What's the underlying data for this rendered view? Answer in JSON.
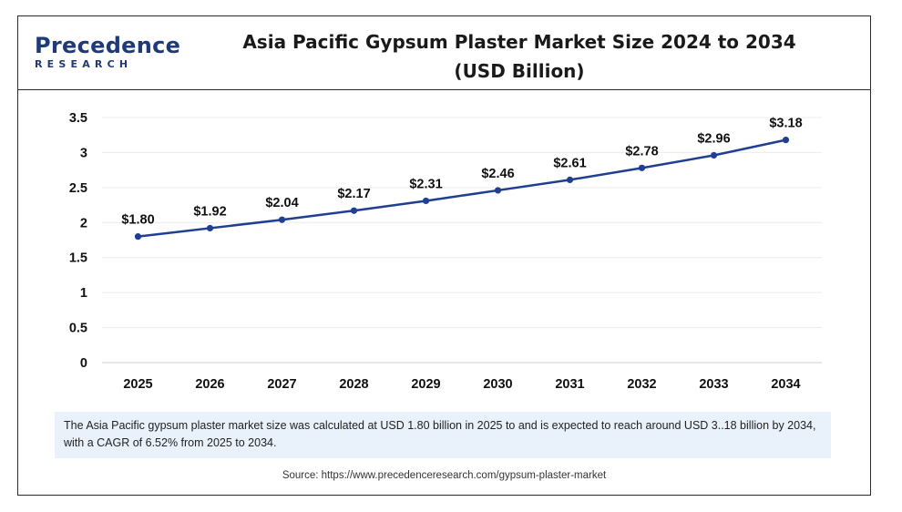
{
  "brand": {
    "logo_top": "Precedence",
    "logo_bottom": "RESEARCH",
    "color": "#1e3a78"
  },
  "header": {
    "title_line1": "Asia Pacific Gypsum Plaster Market Size 2024 to 2034",
    "title_line2": "(USD Billion)"
  },
  "chart_data": {
    "type": "line",
    "title": "Asia Pacific Gypsum Plaster Market Size 2024 to 2034 (USD Billion)",
    "xlabel": "",
    "ylabel": "",
    "x": [
      "2025",
      "2026",
      "2027",
      "2028",
      "2029",
      "2030",
      "2031",
      "2032",
      "2033",
      "2034"
    ],
    "series": [
      {
        "values": [
          1.8,
          1.92,
          2.04,
          2.17,
          2.31,
          2.46,
          2.61,
          2.78,
          2.96,
          3.18
        ],
        "labels": [
          "$1.80",
          "$1.92",
          "$2.04",
          "$2.17",
          "$2.31",
          "$2.46",
          "$2.61",
          "$2.78",
          "$2.96",
          "$3.18"
        ],
        "color": "#1f3f94"
      }
    ],
    "yticks": [
      "0",
      "0.5",
      "1",
      "1.5",
      "2",
      "2.5",
      "3",
      "3.5"
    ],
    "ylim": [
      0,
      3.5
    ],
    "grid": true,
    "legend": "none"
  },
  "caption": "The Asia Pacific  gypsum plaster market size was calculated at USD 1.80 billion in 2025 to and is expected to reach around USD 3..18 billion by 2034, with a CAGR of 6.52% from 2025 to 2034.",
  "source": "Source: https://www.precedenceresearch.com/gypsum-plaster-market"
}
